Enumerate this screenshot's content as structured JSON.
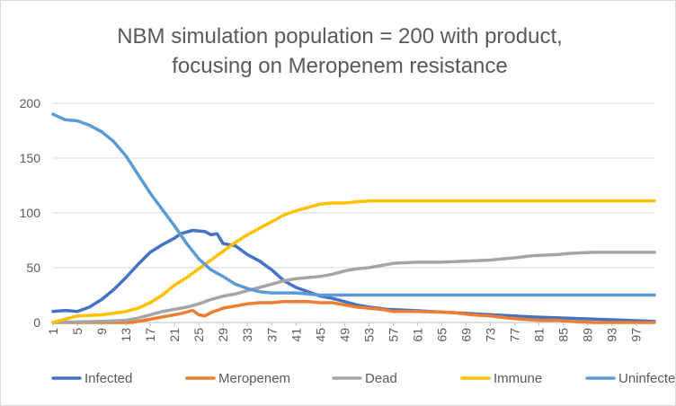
{
  "chart_data": {
    "type": "line",
    "title_lines": [
      "NBM simulation population = 200 with product,",
      "focusing on Meropenem resistance"
    ],
    "xlabel": "",
    "ylabel": "",
    "ylim": [
      0,
      200
    ],
    "y_ticks": [
      0,
      50,
      100,
      150,
      200
    ],
    "x_range": [
      1,
      100
    ],
    "x_tick_labels": [
      "1",
      "5",
      "9",
      "13",
      "17",
      "21",
      "25",
      "29",
      "33",
      "37",
      "41",
      "45",
      "49",
      "53",
      "57",
      "61",
      "65",
      "69",
      "73",
      "77",
      "81",
      "85",
      "89",
      "93",
      "97"
    ],
    "grid": true,
    "legend_position": "bottom",
    "series": [
      {
        "name": "Infected",
        "color": "#4472C4",
        "points": [
          [
            1,
            10
          ],
          [
            3,
            11
          ],
          [
            5,
            10
          ],
          [
            7,
            14
          ],
          [
            9,
            21
          ],
          [
            11,
            30
          ],
          [
            13,
            41
          ],
          [
            15,
            53
          ],
          [
            17,
            64
          ],
          [
            19,
            71
          ],
          [
            21,
            77
          ],
          [
            22,
            81
          ],
          [
            24,
            84
          ],
          [
            26,
            83
          ],
          [
            27,
            80
          ],
          [
            28,
            81
          ],
          [
            29,
            72
          ],
          [
            31,
            70
          ],
          [
            33,
            62
          ],
          [
            35,
            56
          ],
          [
            37,
            48
          ],
          [
            39,
            38
          ],
          [
            41,
            32
          ],
          [
            43,
            28
          ],
          [
            45,
            24
          ],
          [
            47,
            22
          ],
          [
            49,
            19
          ],
          [
            51,
            16
          ],
          [
            53,
            14
          ],
          [
            56,
            12
          ],
          [
            60,
            11
          ],
          [
            70,
            8
          ],
          [
            80,
            5
          ],
          [
            90,
            3
          ],
          [
            100,
            1
          ]
        ]
      },
      {
        "name": "Meropenem",
        "color": "#ED7D31",
        "points": [
          [
            1,
            0
          ],
          [
            14,
            0
          ],
          [
            16,
            2
          ],
          [
            18,
            4
          ],
          [
            20,
            6
          ],
          [
            22,
            8
          ],
          [
            24,
            11
          ],
          [
            25,
            7
          ],
          [
            26,
            6
          ],
          [
            27,
            9
          ],
          [
            29,
            13
          ],
          [
            31,
            15
          ],
          [
            33,
            17
          ],
          [
            35,
            18
          ],
          [
            37,
            18
          ],
          [
            39,
            19
          ],
          [
            41,
            19
          ],
          [
            43,
            19
          ],
          [
            45,
            18
          ],
          [
            47,
            18
          ],
          [
            49,
            16
          ],
          [
            51,
            14
          ],
          [
            53,
            13
          ],
          [
            55,
            12
          ],
          [
            57,
            10
          ],
          [
            61,
            10
          ],
          [
            67,
            9
          ],
          [
            70,
            7
          ],
          [
            73,
            6
          ],
          [
            76,
            4
          ],
          [
            78,
            3
          ],
          [
            81,
            2
          ],
          [
            84,
            2
          ],
          [
            86,
            1
          ],
          [
            90,
            0
          ],
          [
            100,
            0
          ]
        ]
      },
      {
        "name": "Dead",
        "color": "#A5A5A5",
        "points": [
          [
            1,
            0
          ],
          [
            9,
            1
          ],
          [
            13,
            2
          ],
          [
            15,
            4
          ],
          [
            17,
            7
          ],
          [
            19,
            10
          ],
          [
            21,
            12
          ],
          [
            23,
            14
          ],
          [
            25,
            17
          ],
          [
            27,
            21
          ],
          [
            29,
            24
          ],
          [
            31,
            26
          ],
          [
            33,
            29
          ],
          [
            35,
            32
          ],
          [
            37,
            35
          ],
          [
            39,
            38
          ],
          [
            41,
            40
          ],
          [
            43,
            41
          ],
          [
            45,
            42
          ],
          [
            47,
            44
          ],
          [
            49,
            47
          ],
          [
            51,
            49
          ],
          [
            53,
            50
          ],
          [
            55,
            52
          ],
          [
            57,
            54
          ],
          [
            61,
            55
          ],
          [
            65,
            55
          ],
          [
            69,
            56
          ],
          [
            73,
            57
          ],
          [
            77,
            59
          ],
          [
            80,
            61
          ],
          [
            84,
            62
          ],
          [
            86,
            63
          ],
          [
            90,
            64
          ],
          [
            100,
            64
          ]
        ]
      },
      {
        "name": "Immune",
        "color": "#FFC000",
        "points": [
          [
            1,
            0
          ],
          [
            3,
            3
          ],
          [
            5,
            6
          ],
          [
            9,
            7
          ],
          [
            13,
            10
          ],
          [
            15,
            13
          ],
          [
            17,
            18
          ],
          [
            19,
            25
          ],
          [
            21,
            34
          ],
          [
            23,
            41
          ],
          [
            25,
            49
          ],
          [
            27,
            57
          ],
          [
            29,
            65
          ],
          [
            31,
            73
          ],
          [
            33,
            80
          ],
          [
            35,
            86
          ],
          [
            37,
            92
          ],
          [
            39,
            98
          ],
          [
            41,
            102
          ],
          [
            43,
            105
          ],
          [
            45,
            108
          ],
          [
            47,
            109
          ],
          [
            49,
            109
          ],
          [
            51,
            110
          ],
          [
            53,
            111
          ],
          [
            60,
            111
          ],
          [
            70,
            111
          ],
          [
            80,
            111
          ],
          [
            90,
            111
          ],
          [
            100,
            111
          ]
        ]
      },
      {
        "name": "Uninfected",
        "color": "#5B9BD5",
        "points": [
          [
            1,
            190
          ],
          [
            3,
            185
          ],
          [
            5,
            184
          ],
          [
            7,
            180
          ],
          [
            9,
            174
          ],
          [
            11,
            165
          ],
          [
            13,
            152
          ],
          [
            15,
            135
          ],
          [
            17,
            118
          ],
          [
            19,
            103
          ],
          [
            21,
            88
          ],
          [
            23,
            72
          ],
          [
            25,
            58
          ],
          [
            27,
            48
          ],
          [
            29,
            42
          ],
          [
            31,
            35
          ],
          [
            33,
            31
          ],
          [
            35,
            28
          ],
          [
            37,
            27
          ],
          [
            39,
            27
          ],
          [
            41,
            27
          ],
          [
            43,
            26
          ],
          [
            45,
            25
          ],
          [
            47,
            25
          ],
          [
            60,
            25
          ],
          [
            80,
            25
          ],
          [
            100,
            25
          ]
        ]
      }
    ]
  }
}
